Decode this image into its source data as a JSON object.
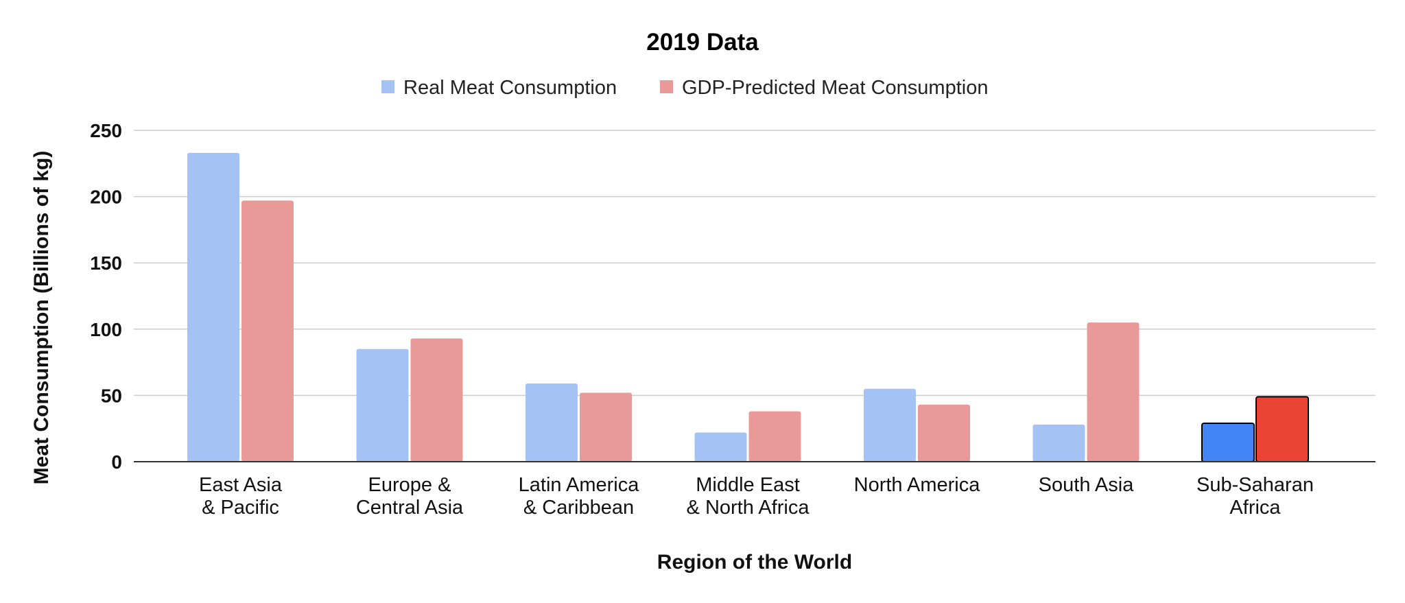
{
  "chart_data": {
    "type": "bar",
    "title": "2019 Data",
    "xlabel": "Region of the World",
    "ylabel": "Meat Consumption (Billions of kg)",
    "ylim": [
      0,
      250
    ],
    "yticks": [
      "0",
      "50",
      "100",
      "150",
      "200",
      "250"
    ],
    "grid": true,
    "legend_position": "top",
    "categories": [
      [
        "East Asia",
        "& Pacific"
      ],
      [
        "Europe &",
        "Central Asia"
      ],
      [
        "Latin America",
        "& Caribbean"
      ],
      [
        "Middle East",
        "& North Africa"
      ],
      [
        "North America"
      ],
      [
        "South Asia"
      ],
      [
        "Sub-Saharan",
        "Africa"
      ]
    ],
    "series": [
      {
        "name": "Real Meat Consumption",
        "color": "#a4c2f4",
        "values": [
          233,
          85,
          59,
          22,
          55,
          28,
          29
        ]
      },
      {
        "name": "GDP-Predicted Meat Consumption",
        "color": "#ea9999",
        "values": [
          197,
          93,
          52,
          38,
          43,
          105,
          49
        ]
      }
    ],
    "highlight": {
      "category_index": 6,
      "colors": [
        "#4285f4",
        "#ea4335"
      ],
      "outline": "#000000"
    },
    "gridline_color": "#cccccc",
    "axis_color": "#333333"
  }
}
